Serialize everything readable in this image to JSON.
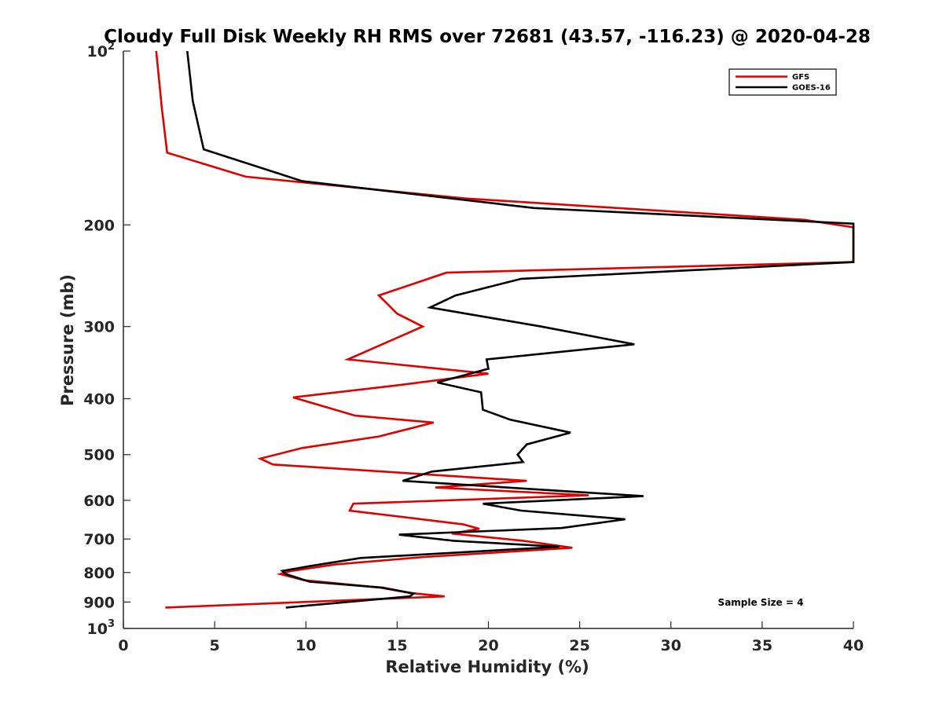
{
  "chart_data": {
    "type": "line",
    "title": "Cloudy Full Disk Weekly RH RMS over 72681 (43.57, -116.23) @ 2020-04-28",
    "xlabel": "Relative Humidity (%)",
    "ylabel": "Pressure (mb)",
    "xlim": [
      0,
      40
    ],
    "ylim": [
      100,
      1000
    ],
    "y_scale": "log",
    "y_reversed": true,
    "grid": false,
    "legend_position": "top-right",
    "x_ticks": [
      0,
      5,
      10,
      15,
      20,
      25,
      30,
      35,
      40
    ],
    "x_tick_labels": [
      "0",
      "5",
      "10",
      "15",
      "20",
      "25",
      "30",
      "35",
      "40"
    ],
    "y_ticks": [
      {
        "value": 100,
        "base": "10",
        "exp": "2"
      },
      {
        "value": 200,
        "label": "200"
      },
      {
        "value": 300,
        "label": "300"
      },
      {
        "value": 400,
        "label": "400"
      },
      {
        "value": 500,
        "label": "500"
      },
      {
        "value": 600,
        "label": "600"
      },
      {
        "value": 700,
        "label": "700"
      },
      {
        "value": 800,
        "label": "800"
      },
      {
        "value": 900,
        "label": "900"
      },
      {
        "value": 1000,
        "base": "10",
        "exp": "3"
      }
    ],
    "annotation": "Sample Size = 4",
    "series": [
      {
        "name": "GFS",
        "color": "#e00000",
        "x": [
          1.8,
          2.1,
          2.4,
          6.7,
          18.7,
          37.3,
          40,
          40,
          17.7,
          14,
          15,
          16.4,
          12.3,
          20,
          14.8,
          9.3,
          12.7,
          17,
          14,
          9.8,
          7.5,
          8.2,
          22.1,
          17.1,
          25.5,
          12.6,
          12.4,
          18.6,
          19.5,
          18,
          21.9,
          24.6,
          16.5,
          11.6,
          9.2,
          8.6,
          9.9,
          14.1,
          15.7,
          17.6,
          2.3
        ],
        "y": [
          100,
          125,
          150,
          165,
          180,
          196,
          202,
          232,
          242,
          265,
          285,
          300,
          342,
          362,
          380,
          398,
          428,
          440,
          465,
          487,
          508,
          520,
          555,
          570,
          588,
          608,
          625,
          660,
          672,
          685,
          705,
          725,
          752,
          775,
          795,
          805,
          825,
          850,
          868,
          880,
          920
        ]
      },
      {
        "name": "GOES-16",
        "color": "#000000",
        "x": [
          3.5,
          3.8,
          4.4,
          9.8,
          22.5,
          40,
          40,
          21.8,
          18.2,
          16.8,
          22.9,
          28,
          19.9,
          20,
          17.2,
          19.6,
          19.7,
          21.2,
          24.5,
          22.1,
          21.6,
          21.9,
          16.9,
          15.3,
          28.5,
          19.7,
          21.8,
          27.5,
          24,
          15.1,
          18.1,
          23.9,
          13,
          10.2,
          8.7,
          8.9,
          10.2,
          14.2,
          15.9,
          15.7,
          8.9
        ],
        "y": [
          100,
          122,
          148,
          168,
          187,
          199,
          232,
          248,
          265,
          278,
          300,
          322,
          342,
          355,
          375,
          390,
          418,
          435,
          458,
          480,
          500,
          515,
          535,
          555,
          590,
          608,
          625,
          647,
          670,
          688,
          705,
          722,
          755,
          780,
          795,
          805,
          830,
          850,
          870,
          880,
          920
        ]
      }
    ]
  }
}
